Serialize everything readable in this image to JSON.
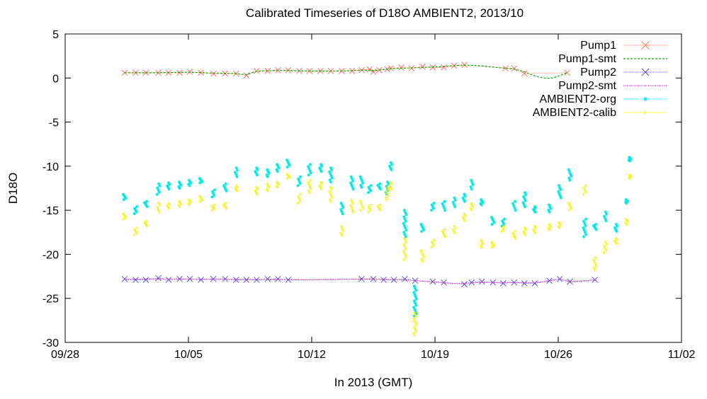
{
  "chart_data": {
    "type": "scatter",
    "title": "Calibrated Timeseries of D18O AMBIENT2, 2013/10",
    "xlabel": "In 2013 (GMT)",
    "ylabel": "D18O",
    "xlim": [
      "2013-09-28",
      "2013-11-02"
    ],
    "ylim": [
      -30,
      5
    ],
    "x_ticks": [
      {
        "date": "2013-09-28",
        "label": "09/28"
      },
      {
        "date": "2013-10-05",
        "label": "10/05"
      },
      {
        "date": "2013-10-12",
        "label": "10/12"
      },
      {
        "date": "2013-10-19",
        "label": "10/19"
      },
      {
        "date": "2013-10-26",
        "label": "10/26"
      },
      {
        "date": "2013-11-02",
        "label": "11/02"
      }
    ],
    "y_ticks": [
      5,
      0,
      -5,
      -10,
      -15,
      -20,
      -25,
      -30
    ],
    "legend_position": "top-right",
    "grid": false,
    "series": [
      {
        "name": "Pump1",
        "style": "points-line",
        "color": "#ff6a5a",
        "marker": "x",
        "points": [
          [
            "2013-10-01T09:00",
            0.6
          ],
          [
            "2013-10-02T00:00",
            0.6
          ],
          [
            "2013-10-02T14:00",
            0.6
          ],
          [
            "2013-10-03T07:00",
            0.6
          ],
          [
            "2013-10-03T21:00",
            0.6
          ],
          [
            "2013-10-04T12:00",
            0.6
          ],
          [
            "2013-10-05T02:00",
            0.7
          ],
          [
            "2013-10-05T17:00",
            0.6
          ],
          [
            "2013-10-06T10:00",
            0.5
          ],
          [
            "2013-10-07T02:00",
            0.5
          ],
          [
            "2013-10-07T17:00",
            0.5
          ],
          [
            "2013-10-08T07:00",
            0.3
          ],
          [
            "2013-10-08T21:00",
            0.8
          ],
          [
            "2013-10-09T12:00",
            0.8
          ],
          [
            "2013-10-10T02:00",
            0.9
          ],
          [
            "2013-10-10T16:00",
            0.9
          ],
          [
            "2013-10-11T07:00",
            0.8
          ],
          [
            "2013-10-11T21:00",
            0.8
          ],
          [
            "2013-10-12T12:00",
            0.8
          ],
          [
            "2013-10-13T02:00",
            0.8
          ],
          [
            "2013-10-13T17:00",
            0.8
          ],
          [
            "2013-10-14T07:00",
            0.8
          ],
          [
            "2013-10-14T20:00",
            0.9
          ],
          [
            "2013-10-15T07:00",
            1.0
          ],
          [
            "2013-10-15T12:00",
            0.7
          ],
          [
            "2013-10-15T20:00",
            0.9
          ],
          [
            "2013-10-16T07:00",
            1.0
          ],
          [
            "2013-10-16T12:00",
            1.1
          ],
          [
            "2013-10-17T02:00",
            1.2
          ],
          [
            "2013-10-17T16:00",
            1.1
          ],
          [
            "2013-10-18T07:00",
            1.3
          ],
          [
            "2013-10-18T21:00",
            1.2
          ],
          [
            "2013-10-19T12:00",
            1.2
          ],
          [
            "2013-10-20T02:00",
            1.4
          ],
          [
            "2013-10-20T16:00",
            1.5
          ],
          [
            "2013-10-23T00:00",
            1.1
          ],
          [
            "2013-10-23T12:00",
            1.1
          ],
          [
            "2013-10-24T02:00",
            0.5
          ],
          [
            "2013-10-26T12:00",
            0.6
          ]
        ]
      },
      {
        "name": "Pump1-smt",
        "style": "dashed-line",
        "color": "#00b000",
        "points": [
          [
            "2013-10-01T09:00",
            0.6
          ],
          [
            "2013-10-03T07:00",
            0.6
          ],
          [
            "2013-10-05T02:00",
            0.65
          ],
          [
            "2013-10-06T10:00",
            0.55
          ],
          [
            "2013-10-07T17:00",
            0.5
          ],
          [
            "2013-10-08T07:00",
            0.4
          ],
          [
            "2013-10-08T21:00",
            0.75
          ],
          [
            "2013-10-10T02:00",
            0.85
          ],
          [
            "2013-10-11T21:00",
            0.8
          ],
          [
            "2013-10-13T17:00",
            0.8
          ],
          [
            "2013-10-14T20:00",
            0.9
          ],
          [
            "2013-10-15T12:00",
            0.85
          ],
          [
            "2013-10-16T12:00",
            1.05
          ],
          [
            "2013-10-17T16:00",
            1.15
          ],
          [
            "2013-10-18T21:00",
            1.25
          ],
          [
            "2013-10-20T02:00",
            1.4
          ],
          [
            "2013-10-20T16:00",
            1.45
          ],
          [
            "2013-10-21T12:00",
            1.4
          ],
          [
            "2013-10-22T12:00",
            1.2
          ],
          [
            "2013-10-23T12:00",
            1.0
          ],
          [
            "2013-10-24T02:00",
            0.7
          ],
          [
            "2013-10-24T14:00",
            0.3
          ],
          [
            "2013-10-25T06:00",
            0.0
          ],
          [
            "2013-10-25T18:00",
            0.05
          ],
          [
            "2013-10-26T12:00",
            0.6
          ]
        ]
      },
      {
        "name": "Pump2",
        "style": "points-line",
        "color": "#5a4ae0",
        "marker": "x",
        "points": [
          [
            "2013-10-01T09:00",
            -22.8
          ],
          [
            "2013-10-02T00:00",
            -22.9
          ],
          [
            "2013-10-02T14:00",
            -22.9
          ],
          [
            "2013-10-03T07:00",
            -22.7
          ],
          [
            "2013-10-03T21:00",
            -22.9
          ],
          [
            "2013-10-04T12:00",
            -22.8
          ],
          [
            "2013-10-05T02:00",
            -22.8
          ],
          [
            "2013-10-05T17:00",
            -22.9
          ],
          [
            "2013-10-06T10:00",
            -22.8
          ],
          [
            "2013-10-07T02:00",
            -22.8
          ],
          [
            "2013-10-07T17:00",
            -22.9
          ],
          [
            "2013-10-08T07:00",
            -22.9
          ],
          [
            "2013-10-08T21:00",
            -22.9
          ],
          [
            "2013-10-09T12:00",
            -22.8
          ],
          [
            "2013-10-10T02:00",
            -22.8
          ],
          [
            "2013-10-10T16:00",
            -22.9
          ],
          [
            "2013-10-14T20:00",
            -22.8
          ],
          [
            "2013-10-15T12:00",
            -22.8
          ],
          [
            "2013-10-16T02:00",
            -22.9
          ],
          [
            "2013-10-16T16:00",
            -22.9
          ],
          [
            "2013-10-17T07:00",
            -22.8
          ],
          [
            "2013-10-17T21:00",
            -23.0
          ],
          [
            "2013-10-18T21:00",
            -23.1
          ],
          [
            "2013-10-19T12:00",
            -23.2
          ],
          [
            "2013-10-20T16:00",
            -23.4
          ],
          [
            "2013-10-21T02:00",
            -23.2
          ],
          [
            "2013-10-21T16:00",
            -23.1
          ],
          [
            "2013-10-22T07:00",
            -23.2
          ],
          [
            "2013-10-22T21:00",
            -23.3
          ],
          [
            "2013-10-23T12:00",
            -23.2
          ],
          [
            "2013-10-24T02:00",
            -23.3
          ],
          [
            "2013-10-24T16:00",
            -23.3
          ],
          [
            "2013-10-25T12:00",
            -23.0
          ],
          [
            "2013-10-26T02:00",
            -22.8
          ],
          [
            "2013-10-26T16:00",
            -23.1
          ],
          [
            "2013-10-28T02:00",
            -22.9
          ]
        ]
      },
      {
        "name": "Pump2-smt",
        "style": "dotted-line",
        "color": "#e000e0",
        "points": [
          [
            "2013-10-01T09:00",
            -22.85
          ],
          [
            "2013-10-03T07:00",
            -22.8
          ],
          [
            "2013-10-05T02:00",
            -22.82
          ],
          [
            "2013-10-07T02:00",
            -22.85
          ],
          [
            "2013-10-08T21:00",
            -22.88
          ],
          [
            "2013-10-10T16:00",
            -22.88
          ],
          [
            "2013-10-12T12:00",
            -22.9
          ],
          [
            "2013-10-14T20:00",
            -22.82
          ],
          [
            "2013-10-16T16:00",
            -22.88
          ],
          [
            "2013-10-17T21:00",
            -22.98
          ],
          [
            "2013-10-18T21:00",
            -23.15
          ],
          [
            "2013-10-20T02:00",
            -23.3
          ],
          [
            "2013-10-21T16:00",
            -23.2
          ],
          [
            "2013-10-23T12:00",
            -23.2
          ],
          [
            "2013-10-24T16:00",
            -23.22
          ],
          [
            "2013-10-25T12:00",
            -23.0
          ],
          [
            "2013-10-26T02:00",
            -22.85
          ],
          [
            "2013-10-26T16:00",
            -23.1
          ],
          [
            "2013-10-27T12:00",
            -23.05
          ],
          [
            "2013-10-28T02:00",
            -22.9
          ]
        ]
      },
      {
        "name": "AMBIENT2-org",
        "style": "point-clusters",
        "color": "#00e8e8",
        "marker": "*",
        "clusters": [
          [
            "2013-10-01T09:00",
            -13.8,
            -13.2
          ],
          [
            "2013-10-02T00:00",
            -15.4,
            -14.6
          ],
          [
            "2013-10-02T14:00",
            -14.6,
            -14.0
          ],
          [
            "2013-10-03T07:00",
            -13.2,
            -12.0
          ],
          [
            "2013-10-03T21:00",
            -12.6,
            -11.9
          ],
          [
            "2013-10-04T12:00",
            -12.5,
            -11.8
          ],
          [
            "2013-10-05T02:00",
            -12.2,
            -11.6
          ],
          [
            "2013-10-05T17:00",
            -11.9,
            -11.4
          ],
          [
            "2013-10-06T10:00",
            -13.5,
            -12.7
          ],
          [
            "2013-10-07T02:00",
            -12.8,
            -12.0
          ],
          [
            "2013-10-07T17:00",
            -11.2,
            -10.2
          ],
          [
            "2013-10-08T21:00",
            -11.0,
            -10.2
          ],
          [
            "2013-10-09T12:00",
            -11.2,
            -10.4
          ],
          [
            "2013-10-10T02:00",
            -10.6,
            -9.8
          ],
          [
            "2013-10-10T16:00",
            -10.1,
            -9.3
          ],
          [
            "2013-10-11T07:00",
            -12.2,
            -11.2
          ],
          [
            "2013-10-11T21:00",
            -11.0,
            -9.8
          ],
          [
            "2013-10-12T12:00",
            -10.6,
            -9.8
          ],
          [
            "2013-10-13T02:00",
            -11.8,
            -10.2
          ],
          [
            "2013-10-13T17:00",
            -15.4,
            -14.2
          ],
          [
            "2013-10-14T07:00",
            -12.6,
            -11.2
          ],
          [
            "2013-10-14T20:00",
            -12.4,
            -11.2
          ],
          [
            "2013-10-15T07:00",
            -13.0,
            -12.2
          ],
          [
            "2013-10-15T20:00",
            -12.6,
            -12.0
          ],
          [
            "2013-10-16T07:00",
            -13.2,
            -11.8
          ],
          [
            "2013-10-16T12:00",
            -10.4,
            -9.6
          ],
          [
            "2013-10-17T07:00",
            -18.0,
            -15.0
          ],
          [
            "2013-10-17T21:00",
            -27.0,
            -23.6
          ],
          [
            "2013-10-18T07:00",
            -17.4,
            -16.6
          ],
          [
            "2013-10-18T21:00",
            -15.0,
            -14.2
          ],
          [
            "2013-10-19T12:00",
            -15.0,
            -14.0
          ],
          [
            "2013-10-20T02:00",
            -14.6,
            -13.6
          ],
          [
            "2013-10-20T16:00",
            -14.0,
            -13.2
          ],
          [
            "2013-10-21T02:00",
            -12.6,
            -11.6
          ],
          [
            "2013-10-21T16:00",
            -14.4,
            -13.8
          ],
          [
            "2013-10-22T07:00",
            -16.6,
            -15.8
          ],
          [
            "2013-10-22T21:00",
            -16.8,
            -16.0
          ],
          [
            "2013-10-23T12:00",
            -15.0,
            -14.0
          ],
          [
            "2013-10-24T02:00",
            -14.6,
            -13.0
          ],
          [
            "2013-10-24T16:00",
            -15.2,
            -14.6
          ],
          [
            "2013-10-25T12:00",
            -15.2,
            -14.4
          ],
          [
            "2013-10-26T02:00",
            -13.6,
            -12.2
          ],
          [
            "2013-10-26T16:00",
            -11.6,
            -10.4
          ],
          [
            "2013-10-27T12:00",
            -18.0,
            -16.0
          ],
          [
            "2013-10-28T02:00",
            -17.2,
            -16.6
          ],
          [
            "2013-10-28T16:00",
            -16.2,
            -15.2
          ],
          [
            "2013-10-29T07:00",
            -17.4,
            -16.6
          ],
          [
            "2013-10-29T21:00",
            -14.2,
            -13.8
          ],
          [
            "2013-10-30T02:00",
            -9.4,
            -9.0
          ]
        ]
      },
      {
        "name": "AMBIENT2-calib",
        "style": "point-clusters",
        "color": "#f8f000",
        "marker": "+",
        "clusters": [
          [
            "2013-10-01T09:00",
            -16.0,
            -15.4
          ],
          [
            "2013-10-02T00:00",
            -17.8,
            -17.0
          ],
          [
            "2013-10-02T14:00",
            -16.8,
            -16.2
          ],
          [
            "2013-10-03T07:00",
            -15.2,
            -14.2
          ],
          [
            "2013-10-03T21:00",
            -14.8,
            -14.2
          ],
          [
            "2013-10-04T12:00",
            -14.6,
            -14.0
          ],
          [
            "2013-10-05T02:00",
            -14.4,
            -13.8
          ],
          [
            "2013-10-05T17:00",
            -14.0,
            -13.4
          ],
          [
            "2013-10-06T10:00",
            -15.0,
            -14.4
          ],
          [
            "2013-10-07T02:00",
            -14.8,
            -14.2
          ],
          [
            "2013-10-07T17:00",
            -12.8,
            -12.2
          ],
          [
            "2013-10-08T21:00",
            -13.2,
            -12.4
          ],
          [
            "2013-10-09T12:00",
            -12.8,
            -12.0
          ],
          [
            "2013-10-10T02:00",
            -12.4,
            -11.8
          ],
          [
            "2013-10-10T16:00",
            -11.4,
            -10.9
          ],
          [
            "2013-10-11T07:00",
            -14.2,
            -13.2
          ],
          [
            "2013-10-11T21:00",
            -13.0,
            -11.6
          ],
          [
            "2013-10-12T12:00",
            -12.6,
            -11.8
          ],
          [
            "2013-10-13T02:00",
            -14.0,
            -12.4
          ],
          [
            "2013-10-13T17:00",
            -17.8,
            -16.8
          ],
          [
            "2013-10-14T07:00",
            -15.2,
            -13.8
          ],
          [
            "2013-10-14T20:00",
            -15.0,
            -14.0
          ],
          [
            "2013-10-15T07:00",
            -15.2,
            -14.4
          ],
          [
            "2013-10-15T20:00",
            -15.0,
            -14.4
          ],
          [
            "2013-10-16T07:00",
            -13.8,
            -12.4
          ],
          [
            "2013-10-16T12:00",
            -12.6,
            -11.8
          ],
          [
            "2013-10-17T07:00",
            -20.6,
            -18.2
          ],
          [
            "2013-10-17T21:00",
            -29.2,
            -26.6
          ],
          [
            "2013-10-18T07:00",
            -20.8,
            -19.6
          ],
          [
            "2013-10-18T21:00",
            -19.2,
            -18.4
          ],
          [
            "2013-10-19T12:00",
            -18.0,
            -17.2
          ],
          [
            "2013-10-20T02:00",
            -17.6,
            -16.8
          ],
          [
            "2013-10-20T16:00",
            -16.2,
            -15.4
          ],
          [
            "2013-10-21T02:00",
            -15.0,
            -14.2
          ],
          [
            "2013-10-21T16:00",
            -19.2,
            -18.4
          ],
          [
            "2013-10-22T07:00",
            -19.2,
            -18.6
          ],
          [
            "2013-10-22T21:00",
            -17.4,
            -16.8
          ],
          [
            "2013-10-23T12:00",
            -18.2,
            -17.4
          ],
          [
            "2013-10-24T02:00",
            -17.8,
            -17.0
          ],
          [
            "2013-10-24T16:00",
            -17.6,
            -16.8
          ],
          [
            "2013-10-25T12:00",
            -17.2,
            -16.6
          ],
          [
            "2013-10-26T02:00",
            -17.0,
            -16.4
          ],
          [
            "2013-10-26T16:00",
            -15.0,
            -14.2
          ],
          [
            "2013-10-27T12:00",
            -13.2,
            -12.2
          ],
          [
            "2013-10-28T02:00",
            -21.8,
            -20.4
          ],
          [
            "2013-10-28T16:00",
            -19.8,
            -18.6
          ],
          [
            "2013-10-29T07:00",
            -18.8,
            -18.2
          ],
          [
            "2013-10-29T21:00",
            -16.6,
            -16.0
          ],
          [
            "2013-10-30T02:00",
            -11.4,
            -11.0
          ]
        ]
      }
    ]
  }
}
